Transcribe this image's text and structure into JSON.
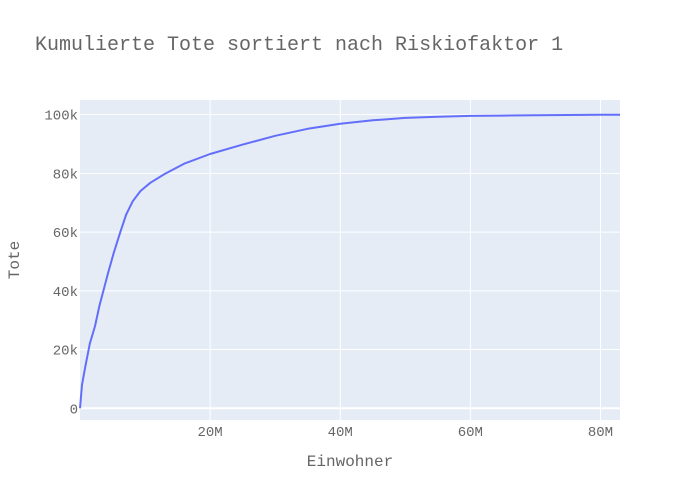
{
  "chart_data": {
    "type": "line",
    "title": "Kumulierte Tote sortiert nach Riskiofaktor 1",
    "xlabel": "Einwohner",
    "ylabel": "Tote",
    "xlim": [
      0,
      83000000
    ],
    "ylim": [
      -4000,
      105000
    ],
    "xticks": [
      {
        "value": 20000000,
        "label": "20M"
      },
      {
        "value": 40000000,
        "label": "40M"
      },
      {
        "value": 60000000,
        "label": "60M"
      },
      {
        "value": 80000000,
        "label": "80M"
      }
    ],
    "yticks": [
      {
        "value": 0,
        "label": "0"
      },
      {
        "value": 20000,
        "label": "20k"
      },
      {
        "value": 40000,
        "label": "40k"
      },
      {
        "value": 60000,
        "label": "60k"
      },
      {
        "value": 80000,
        "label": "80k"
      },
      {
        "value": 100000,
        "label": "100k"
      }
    ],
    "grid": true,
    "series": [
      {
        "color": "#636efa",
        "x": [
          0,
          300000,
          800000,
          1500000,
          2300000,
          3000000,
          3600000,
          4300000,
          5200000,
          6200000,
          7100000,
          8100000,
          9300000,
          10800000,
          13000000,
          16000000,
          20000000,
          25000000,
          30000000,
          35000000,
          40000000,
          45000000,
          50000000,
          55000000,
          60000000,
          65000000,
          70000000,
          75000000,
          80000000,
          83000000
        ],
        "y": [
          0,
          8000,
          14000,
          22000,
          28000,
          35000,
          40000,
          46000,
          53000,
          60000,
          66000,
          70500,
          74000,
          76800,
          79800,
          83300,
          86600,
          89800,
          92800,
          95200,
          96900,
          98100,
          98900,
          99300,
          99600,
          99700,
          99800,
          99900,
          100000,
          100000
        ]
      }
    ]
  }
}
